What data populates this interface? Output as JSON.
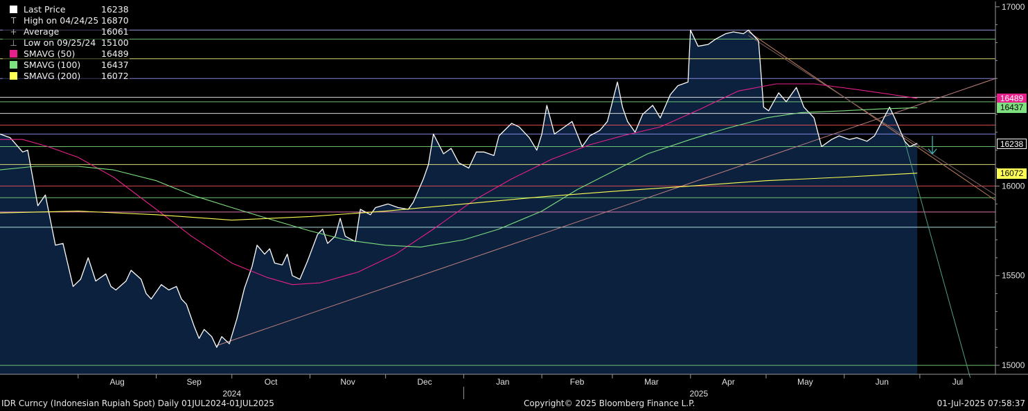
{
  "chart_data": {
    "type": "line",
    "y_range": [
      14950,
      17030
    ],
    "x_range": [
      "2024-07-01",
      "2025-07-31"
    ],
    "x_ticks": [
      {
        "date": "2024-08-01",
        "label": "Aug"
      },
      {
        "date": "2024-09-01",
        "label": "Sep"
      },
      {
        "date": "2024-10-01",
        "label": "Oct"
      },
      {
        "date": "2024-11-01",
        "label": "Nov"
      },
      {
        "date": "2024-12-01",
        "label": "Dec"
      },
      {
        "date": "2025-01-01",
        "label": "Jan"
      },
      {
        "date": "2025-02-01",
        "label": "Feb"
      },
      {
        "date": "2025-03-01",
        "label": "Mar"
      },
      {
        "date": "2025-04-01",
        "label": "Apr"
      },
      {
        "date": "2025-05-01",
        "label": "May"
      },
      {
        "date": "2025-06-01",
        "label": "Jun"
      },
      {
        "date": "2025-07-01",
        "label": "Jul"
      }
    ],
    "year_labels": [
      {
        "date": "2024-10-01",
        "label": "2024"
      },
      {
        "date": "2025-04-01",
        "label": "2025"
      }
    ],
    "year_divider": "2025-01-01",
    "y_ticks": [
      15000,
      15500,
      16000,
      17000
    ],
    "series": [
      {
        "name": "Last Price",
        "color": "#ffffff",
        "points": [
          [
            "2024-07-01",
            16290
          ],
          [
            "2024-07-05",
            16270
          ],
          [
            "2024-07-10",
            16190
          ],
          [
            "2024-07-12",
            16200
          ],
          [
            "2024-07-16",
            15890
          ],
          [
            "2024-07-19",
            15950
          ],
          [
            "2024-07-23",
            15670
          ],
          [
            "2024-07-26",
            15680
          ],
          [
            "2024-07-30",
            15440
          ],
          [
            "2024-08-02",
            15480
          ],
          [
            "2024-08-05",
            15600
          ],
          [
            "2024-08-08",
            15470
          ],
          [
            "2024-08-12",
            15510
          ],
          [
            "2024-08-14",
            15440
          ],
          [
            "2024-08-16",
            15420
          ],
          [
            "2024-08-20",
            15470
          ],
          [
            "2024-08-22",
            15530
          ],
          [
            "2024-08-26",
            15480
          ],
          [
            "2024-08-28",
            15400
          ],
          [
            "2024-08-30",
            15370
          ],
          [
            "2024-09-03",
            15450
          ],
          [
            "2024-09-06",
            15420
          ],
          [
            "2024-09-09",
            15440
          ],
          [
            "2024-09-11",
            15370
          ],
          [
            "2024-09-13",
            15340
          ],
          [
            "2024-09-16",
            15220
          ],
          [
            "2024-09-18",
            15150
          ],
          [
            "2024-09-20",
            15200
          ],
          [
            "2024-09-23",
            15160
          ],
          [
            "2024-09-25",
            15100
          ],
          [
            "2024-09-27",
            15160
          ],
          [
            "2024-09-30",
            15120
          ],
          [
            "2024-10-03",
            15260
          ],
          [
            "2024-10-06",
            15430
          ],
          [
            "2024-10-09",
            15550
          ],
          [
            "2024-10-11",
            15670
          ],
          [
            "2024-10-14",
            15620
          ],
          [
            "2024-10-16",
            15650
          ],
          [
            "2024-10-18",
            15570
          ],
          [
            "2024-10-21",
            15560
          ],
          [
            "2024-10-23",
            15620
          ],
          [
            "2024-10-25",
            15500
          ],
          [
            "2024-10-28",
            15480
          ],
          [
            "2024-10-31",
            15580
          ],
          [
            "2024-11-04",
            15730
          ],
          [
            "2024-11-06",
            15760
          ],
          [
            "2024-11-08",
            15680
          ],
          [
            "2024-11-11",
            15720
          ],
          [
            "2024-11-13",
            15820
          ],
          [
            "2024-11-15",
            15720
          ],
          [
            "2024-11-19",
            15690
          ],
          [
            "2024-11-21",
            15870
          ],
          [
            "2024-11-25",
            15840
          ],
          [
            "2024-11-27",
            15880
          ],
          [
            "2024-12-02",
            15900
          ],
          [
            "2024-12-06",
            15880
          ],
          [
            "2024-12-10",
            15870
          ],
          [
            "2024-12-12",
            15910
          ],
          [
            "2024-12-16",
            16040
          ],
          [
            "2024-12-18",
            16120
          ],
          [
            "2024-12-20",
            16290
          ],
          [
            "2024-12-24",
            16180
          ],
          [
            "2024-12-27",
            16210
          ],
          [
            "2024-12-30",
            16130
          ],
          [
            "2025-01-03",
            16100
          ],
          [
            "2025-01-06",
            16190
          ],
          [
            "2025-01-09",
            16190
          ],
          [
            "2025-01-13",
            16170
          ],
          [
            "2025-01-15",
            16280
          ],
          [
            "2025-01-20",
            16350
          ],
          [
            "2025-01-23",
            16330
          ],
          [
            "2025-01-27",
            16270
          ],
          [
            "2025-01-30",
            16200
          ],
          [
            "2025-02-01",
            16290
          ],
          [
            "2025-02-03",
            16450
          ],
          [
            "2025-02-06",
            16290
          ],
          [
            "2025-02-10",
            16330
          ],
          [
            "2025-02-13",
            16360
          ],
          [
            "2025-02-17",
            16220
          ],
          [
            "2025-02-20",
            16280
          ],
          [
            "2025-02-24",
            16310
          ],
          [
            "2025-02-27",
            16360
          ],
          [
            "2025-03-03",
            16580
          ],
          [
            "2025-03-05",
            16440
          ],
          [
            "2025-03-07",
            16360
          ],
          [
            "2025-03-10",
            16300
          ],
          [
            "2025-03-13",
            16400
          ],
          [
            "2025-03-17",
            16450
          ],
          [
            "2025-03-20",
            16380
          ],
          [
            "2025-03-24",
            16510
          ],
          [
            "2025-03-27",
            16560
          ],
          [
            "2025-03-31",
            16580
          ],
          [
            "2025-04-01",
            16870
          ],
          [
            "2025-04-04",
            16780
          ],
          [
            "2025-04-08",
            16790
          ],
          [
            "2025-04-11",
            16820
          ],
          [
            "2025-04-15",
            16850
          ],
          [
            "2025-04-18",
            16860
          ],
          [
            "2025-04-22",
            16850
          ],
          [
            "2025-04-24",
            16870
          ],
          [
            "2025-04-28",
            16810
          ],
          [
            "2025-04-30",
            16440
          ],
          [
            "2025-05-02",
            16420
          ],
          [
            "2025-05-06",
            16520
          ],
          [
            "2025-05-09",
            16470
          ],
          [
            "2025-05-13",
            16550
          ],
          [
            "2025-05-16",
            16440
          ],
          [
            "2025-05-20",
            16380
          ],
          [
            "2025-05-23",
            16220
          ],
          [
            "2025-05-27",
            16260
          ],
          [
            "2025-05-30",
            16280
          ],
          [
            "2025-06-03",
            16260
          ],
          [
            "2025-06-06",
            16270
          ],
          [
            "2025-06-10",
            16250
          ],
          [
            "2025-06-13",
            16280
          ],
          [
            "2025-06-16",
            16360
          ],
          [
            "2025-06-19",
            16440
          ],
          [
            "2025-06-21",
            16380
          ],
          [
            "2025-06-25",
            16250
          ],
          [
            "2025-06-27",
            16220
          ],
          [
            "2025-06-30",
            16238
          ]
        ]
      },
      {
        "name": "SMAVG (50)",
        "color": "#e8208c",
        "points": [
          [
            "2024-07-01",
            16260
          ],
          [
            "2024-07-10",
            16260
          ],
          [
            "2024-07-20",
            16220
          ],
          [
            "2024-08-01",
            16160
          ],
          [
            "2024-08-15",
            16050
          ],
          [
            "2024-09-01",
            15870
          ],
          [
            "2024-09-15",
            15720
          ],
          [
            "2024-10-01",
            15570
          ],
          [
            "2024-10-15",
            15490
          ],
          [
            "2024-10-25",
            15450
          ],
          [
            "2024-11-05",
            15460
          ],
          [
            "2024-11-20",
            15520
          ],
          [
            "2024-12-05",
            15620
          ],
          [
            "2024-12-20",
            15760
          ],
          [
            "2025-01-05",
            15920
          ],
          [
            "2025-01-20",
            16040
          ],
          [
            "2025-02-05",
            16150
          ],
          [
            "2025-02-20",
            16230
          ],
          [
            "2025-03-05",
            16280
          ],
          [
            "2025-03-20",
            16330
          ],
          [
            "2025-04-05",
            16430
          ],
          [
            "2025-04-20",
            16530
          ],
          [
            "2025-05-05",
            16570
          ],
          [
            "2025-05-20",
            16570
          ],
          [
            "2025-06-05",
            16540
          ],
          [
            "2025-06-20",
            16510
          ],
          [
            "2025-06-30",
            16489
          ]
        ]
      },
      {
        "name": "SMAVG (100)",
        "color": "#7fe07f",
        "points": [
          [
            "2024-07-01",
            16090
          ],
          [
            "2024-07-15",
            16110
          ],
          [
            "2024-08-01",
            16110
          ],
          [
            "2024-08-15",
            16090
          ],
          [
            "2024-09-01",
            16030
          ],
          [
            "2024-09-15",
            15950
          ],
          [
            "2024-10-01",
            15880
          ],
          [
            "2024-10-15",
            15820
          ],
          [
            "2024-11-01",
            15750
          ],
          [
            "2024-11-15",
            15700
          ],
          [
            "2024-12-01",
            15670
          ],
          [
            "2024-12-15",
            15660
          ],
          [
            "2025-01-01",
            15700
          ],
          [
            "2025-01-15",
            15760
          ],
          [
            "2025-02-01",
            15860
          ],
          [
            "2025-02-15",
            15980
          ],
          [
            "2025-03-01",
            16080
          ],
          [
            "2025-03-15",
            16180
          ],
          [
            "2025-04-01",
            16260
          ],
          [
            "2025-04-15",
            16320
          ],
          [
            "2025-05-01",
            16380
          ],
          [
            "2025-05-15",
            16410
          ],
          [
            "2025-06-01",
            16420
          ],
          [
            "2025-06-15",
            16430
          ],
          [
            "2025-06-30",
            16437
          ]
        ]
      },
      {
        "name": "SMAVG (200)",
        "color": "#ffff55",
        "points": [
          [
            "2024-07-01",
            15850
          ],
          [
            "2024-08-01",
            15860
          ],
          [
            "2024-09-01",
            15840
          ],
          [
            "2024-10-01",
            15810
          ],
          [
            "2024-11-01",
            15830
          ],
          [
            "2024-12-01",
            15860
          ],
          [
            "2025-01-01",
            15900
          ],
          [
            "2025-02-01",
            15940
          ],
          [
            "2025-03-01",
            15970
          ],
          [
            "2025-04-01",
            16000
          ],
          [
            "2025-05-01",
            16030
          ],
          [
            "2025-06-01",
            16050
          ],
          [
            "2025-06-30",
            16072
          ]
        ]
      }
    ],
    "horizontal_levels": [
      {
        "value": 16870,
        "color": "#b3b3ff"
      },
      {
        "value": 16820,
        "color": "#7fe07f"
      },
      {
        "value": 16710,
        "color": "#ffff88"
      },
      {
        "value": 16600,
        "color": "#9999ff"
      },
      {
        "value": 16495,
        "color": "#ffffff"
      },
      {
        "value": 16470,
        "color": "#7fe07f"
      },
      {
        "value": 16405,
        "color": "#ffffff"
      },
      {
        "value": 16340,
        "color": "#ff5555"
      },
      {
        "value": 16290,
        "color": "#9999ff"
      },
      {
        "value": 16220,
        "color": "#7fe07f"
      },
      {
        "value": 16120,
        "color": "#ffff88"
      },
      {
        "value": 16000,
        "color": "#ff5555"
      },
      {
        "value": 15935,
        "color": "#7fe07f"
      },
      {
        "value": 15855,
        "color": "#ff88cc"
      },
      {
        "value": 15770,
        "color": "#ccffff"
      },
      {
        "value": 15000,
        "color": "#7fe07f"
      }
    ],
    "trendlines": [
      {
        "from": [
          "2024-09-25",
          15110
        ],
        "to": [
          "2025-07-31",
          16600
        ],
        "color": "#c08080"
      },
      {
        "from": [
          "2025-04-24",
          16860
        ],
        "to": [
          "2025-07-31",
          15920
        ],
        "color": "#c08060"
      },
      {
        "from": [
          "2025-04-24",
          16840
        ],
        "to": [
          "2025-07-31",
          15950
        ],
        "color": "#806060"
      },
      {
        "from": [
          "2025-06-25",
          16250
        ],
        "to": [
          "2025-07-21",
          14930
        ],
        "color": "#4fa08c"
      }
    ],
    "arrow": {
      "date": "2025-07-06",
      "from": 16280,
      "to": 16180,
      "color": "#40c0c0"
    },
    "value_tags": [
      {
        "label": "16489",
        "value": 16489,
        "bg": "#e8208c",
        "fg": "#ffffff"
      },
      {
        "label": "16437",
        "value": 16437,
        "bg": "#7fe07f",
        "fg": "#000000"
      },
      {
        "label": "16238",
        "value": 16238,
        "bg": "#000000",
        "fg": "#ffffff",
        "border": "#ffffff"
      },
      {
        "label": "16072",
        "value": 16072,
        "bg": "#ffff55",
        "fg": "#000000"
      }
    ]
  },
  "legend": [
    {
      "label": "Last Price",
      "value": "16238",
      "glyph": "box",
      "color": "#ffffff"
    },
    {
      "label": "High on 04/24/25",
      "value": "16870",
      "glyph": "T",
      "color": "#b0b0b0"
    },
    {
      "label": "Average",
      "value": "16061",
      "glyph": "+",
      "color": "#b0b0b0"
    },
    {
      "label": "Low on 09/25/24",
      "value": "15100",
      "glyph": "⊥",
      "color": "#b0b0b0"
    },
    {
      "label": "SMAVG (50)",
      "value": "16489",
      "glyph": "box",
      "color": "#e8208c"
    },
    {
      "label": "SMAVG (100)",
      "value": "16437",
      "glyph": "box",
      "color": "#7fe07f"
    },
    {
      "label": "SMAVG (200)",
      "value": "16072",
      "glyph": "box",
      "color": "#ffff55"
    }
  ],
  "footer": {
    "left": "IDR Curncy (Indonesian Rupiah Spot)  Daily 01JUL2024-01JUL2025",
    "center": "Copyright© 2025 Bloomberg Finance L.P.",
    "right": "01-Jul-2025 07:58:37"
  }
}
